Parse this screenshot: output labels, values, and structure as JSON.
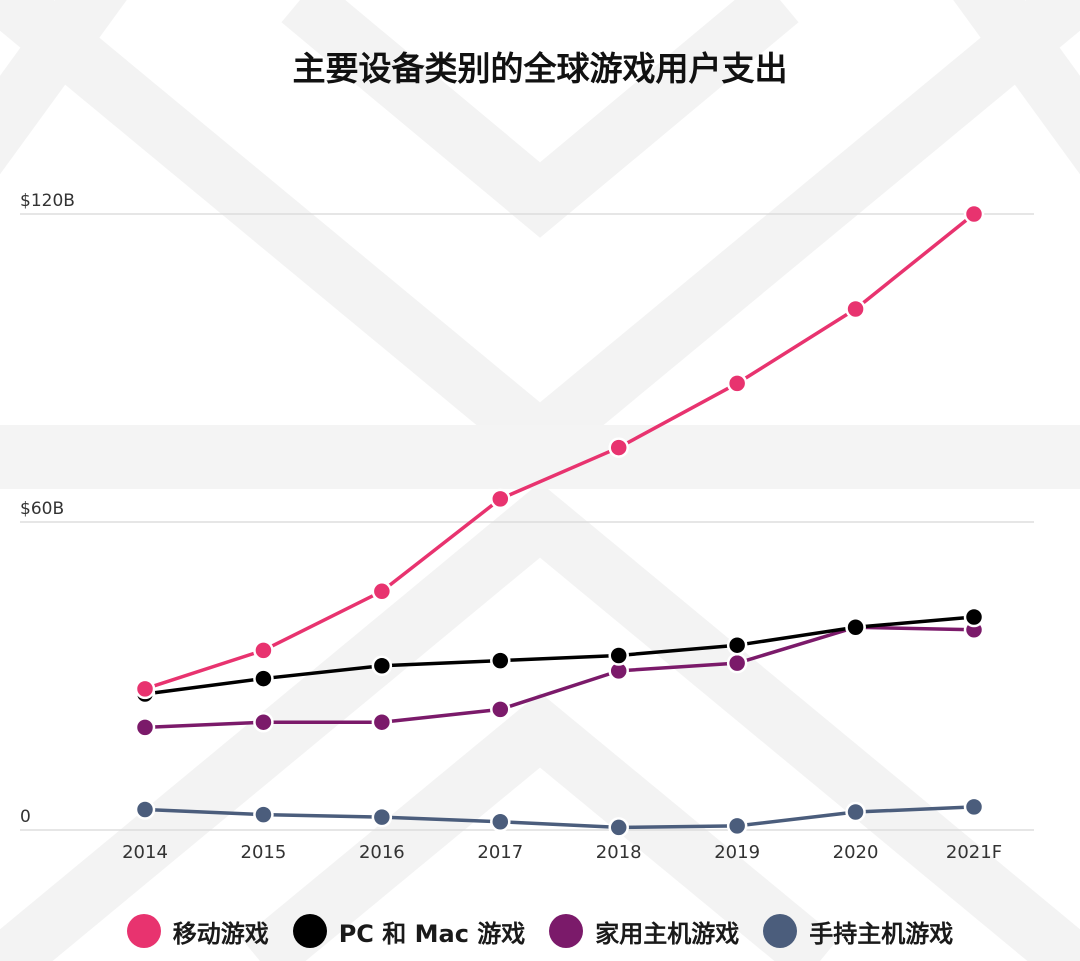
{
  "title": "主要设备类别的全球游戏用户支出",
  "chart_data": {
    "type": "line",
    "title": "主要设备类别的全球游戏用户支出",
    "xlabel": "",
    "ylabel": "",
    "categories": [
      "2014",
      "2015",
      "2016",
      "2017",
      "2018",
      "2019",
      "2020",
      "2021F"
    ],
    "ylim": [
      0,
      120
    ],
    "y_ticks": [
      {
        "value": 0,
        "label": "0"
      },
      {
        "value": 60,
        "label": "$60B"
      },
      {
        "value": 120,
        "label": "$120B"
      }
    ],
    "grid": true,
    "legend_position": "bottom",
    "series": [
      {
        "name": "移动游戏",
        "color": "#e8336f",
        "values": [
          27.5,
          35,
          46.5,
          64.5,
          74.5,
          87,
          101.5,
          120
        ]
      },
      {
        "name": "PC 和 Mac 游戏",
        "color": "#000000",
        "values": [
          26.5,
          29.5,
          32,
          33,
          34,
          36,
          39.5,
          41.5
        ]
      },
      {
        "name": "家用主机游戏",
        "color": "#7b1a6a",
        "values": [
          20,
          21,
          21,
          23.5,
          31,
          32.5,
          39.5,
          39
        ]
      },
      {
        "name": "手持主机游戏",
        "color": "#4b5d7c",
        "values": [
          4,
          3,
          2.5,
          1.6,
          0.5,
          0.8,
          3.5,
          4.5
        ]
      }
    ]
  }
}
